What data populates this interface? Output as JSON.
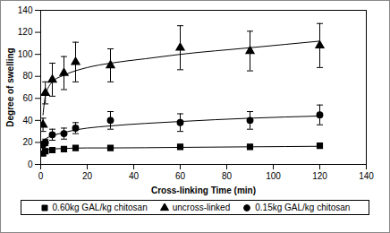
{
  "chart_data": {
    "type": "scatter",
    "x_label": "Cross-linking Time (min)",
    "y_label": "Degree of swelling",
    "xlim": [
      0,
      140
    ],
    "ylim": [
      0,
      140
    ],
    "xticks": [
      0,
      20,
      40,
      60,
      80,
      100,
      120,
      140
    ],
    "yticks": [
      0,
      20,
      40,
      60,
      80,
      100,
      120,
      140
    ],
    "grid": false,
    "legend": "bottom",
    "series": [
      {
        "name": "0.60kg GAL/kg chitosan",
        "color": "#000000",
        "marker": "square",
        "x": [
          1,
          2,
          5,
          10,
          15,
          30,
          60,
          90,
          120
        ],
        "values": [
          10,
          12,
          13,
          14,
          15,
          15,
          16,
          16,
          17
        ],
        "errors": [
          2,
          2,
          2,
          2,
          2,
          2,
          2,
          2,
          2
        ],
        "fit_x": [
          1,
          2,
          5,
          10,
          20,
          30,
          60,
          90,
          120
        ],
        "fit_values": [
          12,
          13,
          14,
          14.5,
          15,
          15,
          15.5,
          16,
          16.5
        ]
      },
      {
        "name": "uncross-linked",
        "color": "#000000",
        "marker": "triangle",
        "x": [
          1,
          2,
          5,
          10,
          15,
          30,
          60,
          90,
          120
        ],
        "values": [
          36,
          65,
          77,
          83,
          93,
          90,
          106,
          103,
          108
        ],
        "errors": [
          6,
          10,
          15,
          15,
          18,
          15,
          20,
          18,
          20
        ],
        "fit_x": [
          1,
          2,
          5,
          10,
          20,
          30,
          45,
          60,
          90,
          120
        ],
        "fit_values": [
          45,
          62,
          75,
          81,
          88,
          92,
          96,
          100,
          106,
          112
        ]
      },
      {
        "name": "0.15kg GAL/kg chitosan",
        "color": "#000000",
        "marker": "circle",
        "x": [
          1,
          2,
          5,
          10,
          15,
          30,
          60,
          90,
          120
        ],
        "values": [
          18,
          20,
          27,
          28,
          33,
          40,
          38,
          40,
          45
        ],
        "errors": [
          3,
          3,
          5,
          5,
          5,
          8,
          8,
          8,
          9
        ],
        "fit_x": [
          1,
          2,
          5,
          10,
          20,
          30,
          60,
          90,
          120
        ],
        "fit_values": [
          20,
          23,
          26,
          29,
          33,
          35,
          39,
          42,
          44
        ]
      }
    ]
  }
}
